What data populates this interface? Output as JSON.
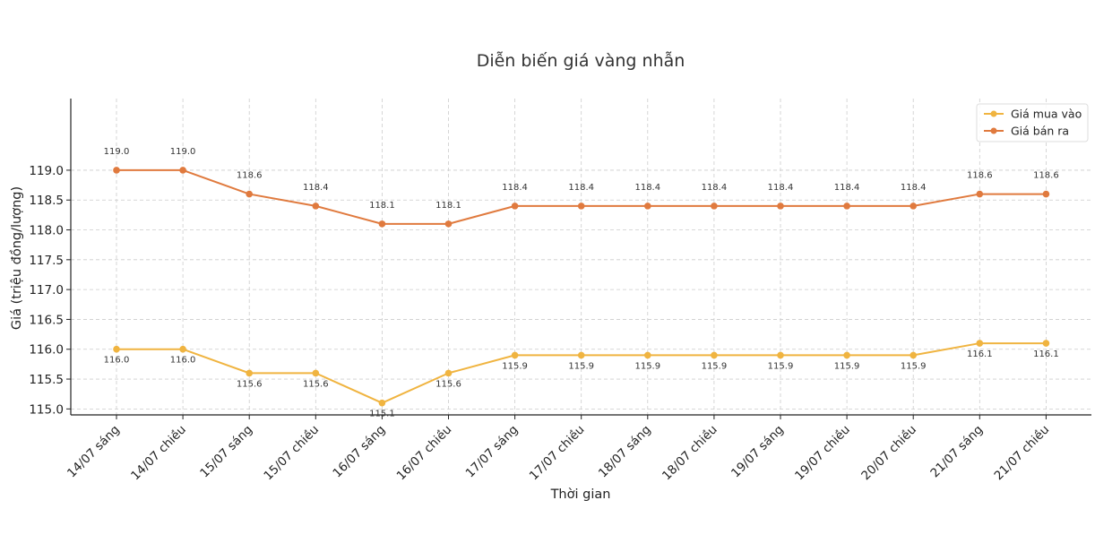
{
  "chart_data": {
    "type": "line",
    "title": "Diễn biến giá vàng nhẫn",
    "xlabel": "Thời gian",
    "ylabel": "Giá (triệu đồng/lượng)",
    "categories": [
      "14/07 sáng",
      "14/07 chiều",
      "15/07 sáng",
      "15/07 chiều",
      "16/07 sáng",
      "16/07 chiều",
      "17/07 sáng",
      "17/07 chiều",
      "18/07 sáng",
      "18/07 chiều",
      "19/07 sáng",
      "19/07 chiều",
      "20/07 chiều",
      "21/07 sáng",
      "21/07 chiều"
    ],
    "series": [
      {
        "name": "Giá mua vào",
        "color": "#f0b440",
        "values": [
          116.0,
          116.0,
          115.6,
          115.6,
          115.1,
          115.6,
          115.9,
          115.9,
          115.9,
          115.9,
          115.9,
          115.9,
          115.9,
          116.1,
          116.1
        ],
        "labels": [
          "116.0",
          "116.0",
          "115.6",
          "115.6",
          "115.1",
          "115.6",
          "115.9",
          "115.9",
          "115.9",
          "115.9",
          "115.9",
          "115.9",
          "115.9",
          "116.1",
          "116.1"
        ]
      },
      {
        "name": "Giá bán ra",
        "color": "#e07a3e",
        "values": [
          119.0,
          119.0,
          118.6,
          118.4,
          118.1,
          118.1,
          118.4,
          118.4,
          118.4,
          118.4,
          118.4,
          118.4,
          118.4,
          118.6,
          118.6
        ],
        "labels": [
          "119.0",
          "119.0",
          "118.6",
          "118.4",
          "118.1",
          "118.1",
          "118.4",
          "118.4",
          "118.4",
          "118.4",
          "118.4",
          "118.4",
          "118.4",
          "118.6",
          "118.6"
        ]
      }
    ],
    "ylim": [
      114.9,
      120.2
    ],
    "yticks": [
      "115.0",
      "115.5",
      "116.0",
      "116.5",
      "117.0",
      "117.5",
      "118.0",
      "118.5",
      "119.0"
    ],
    "grid": true,
    "legend": "top-right"
  }
}
